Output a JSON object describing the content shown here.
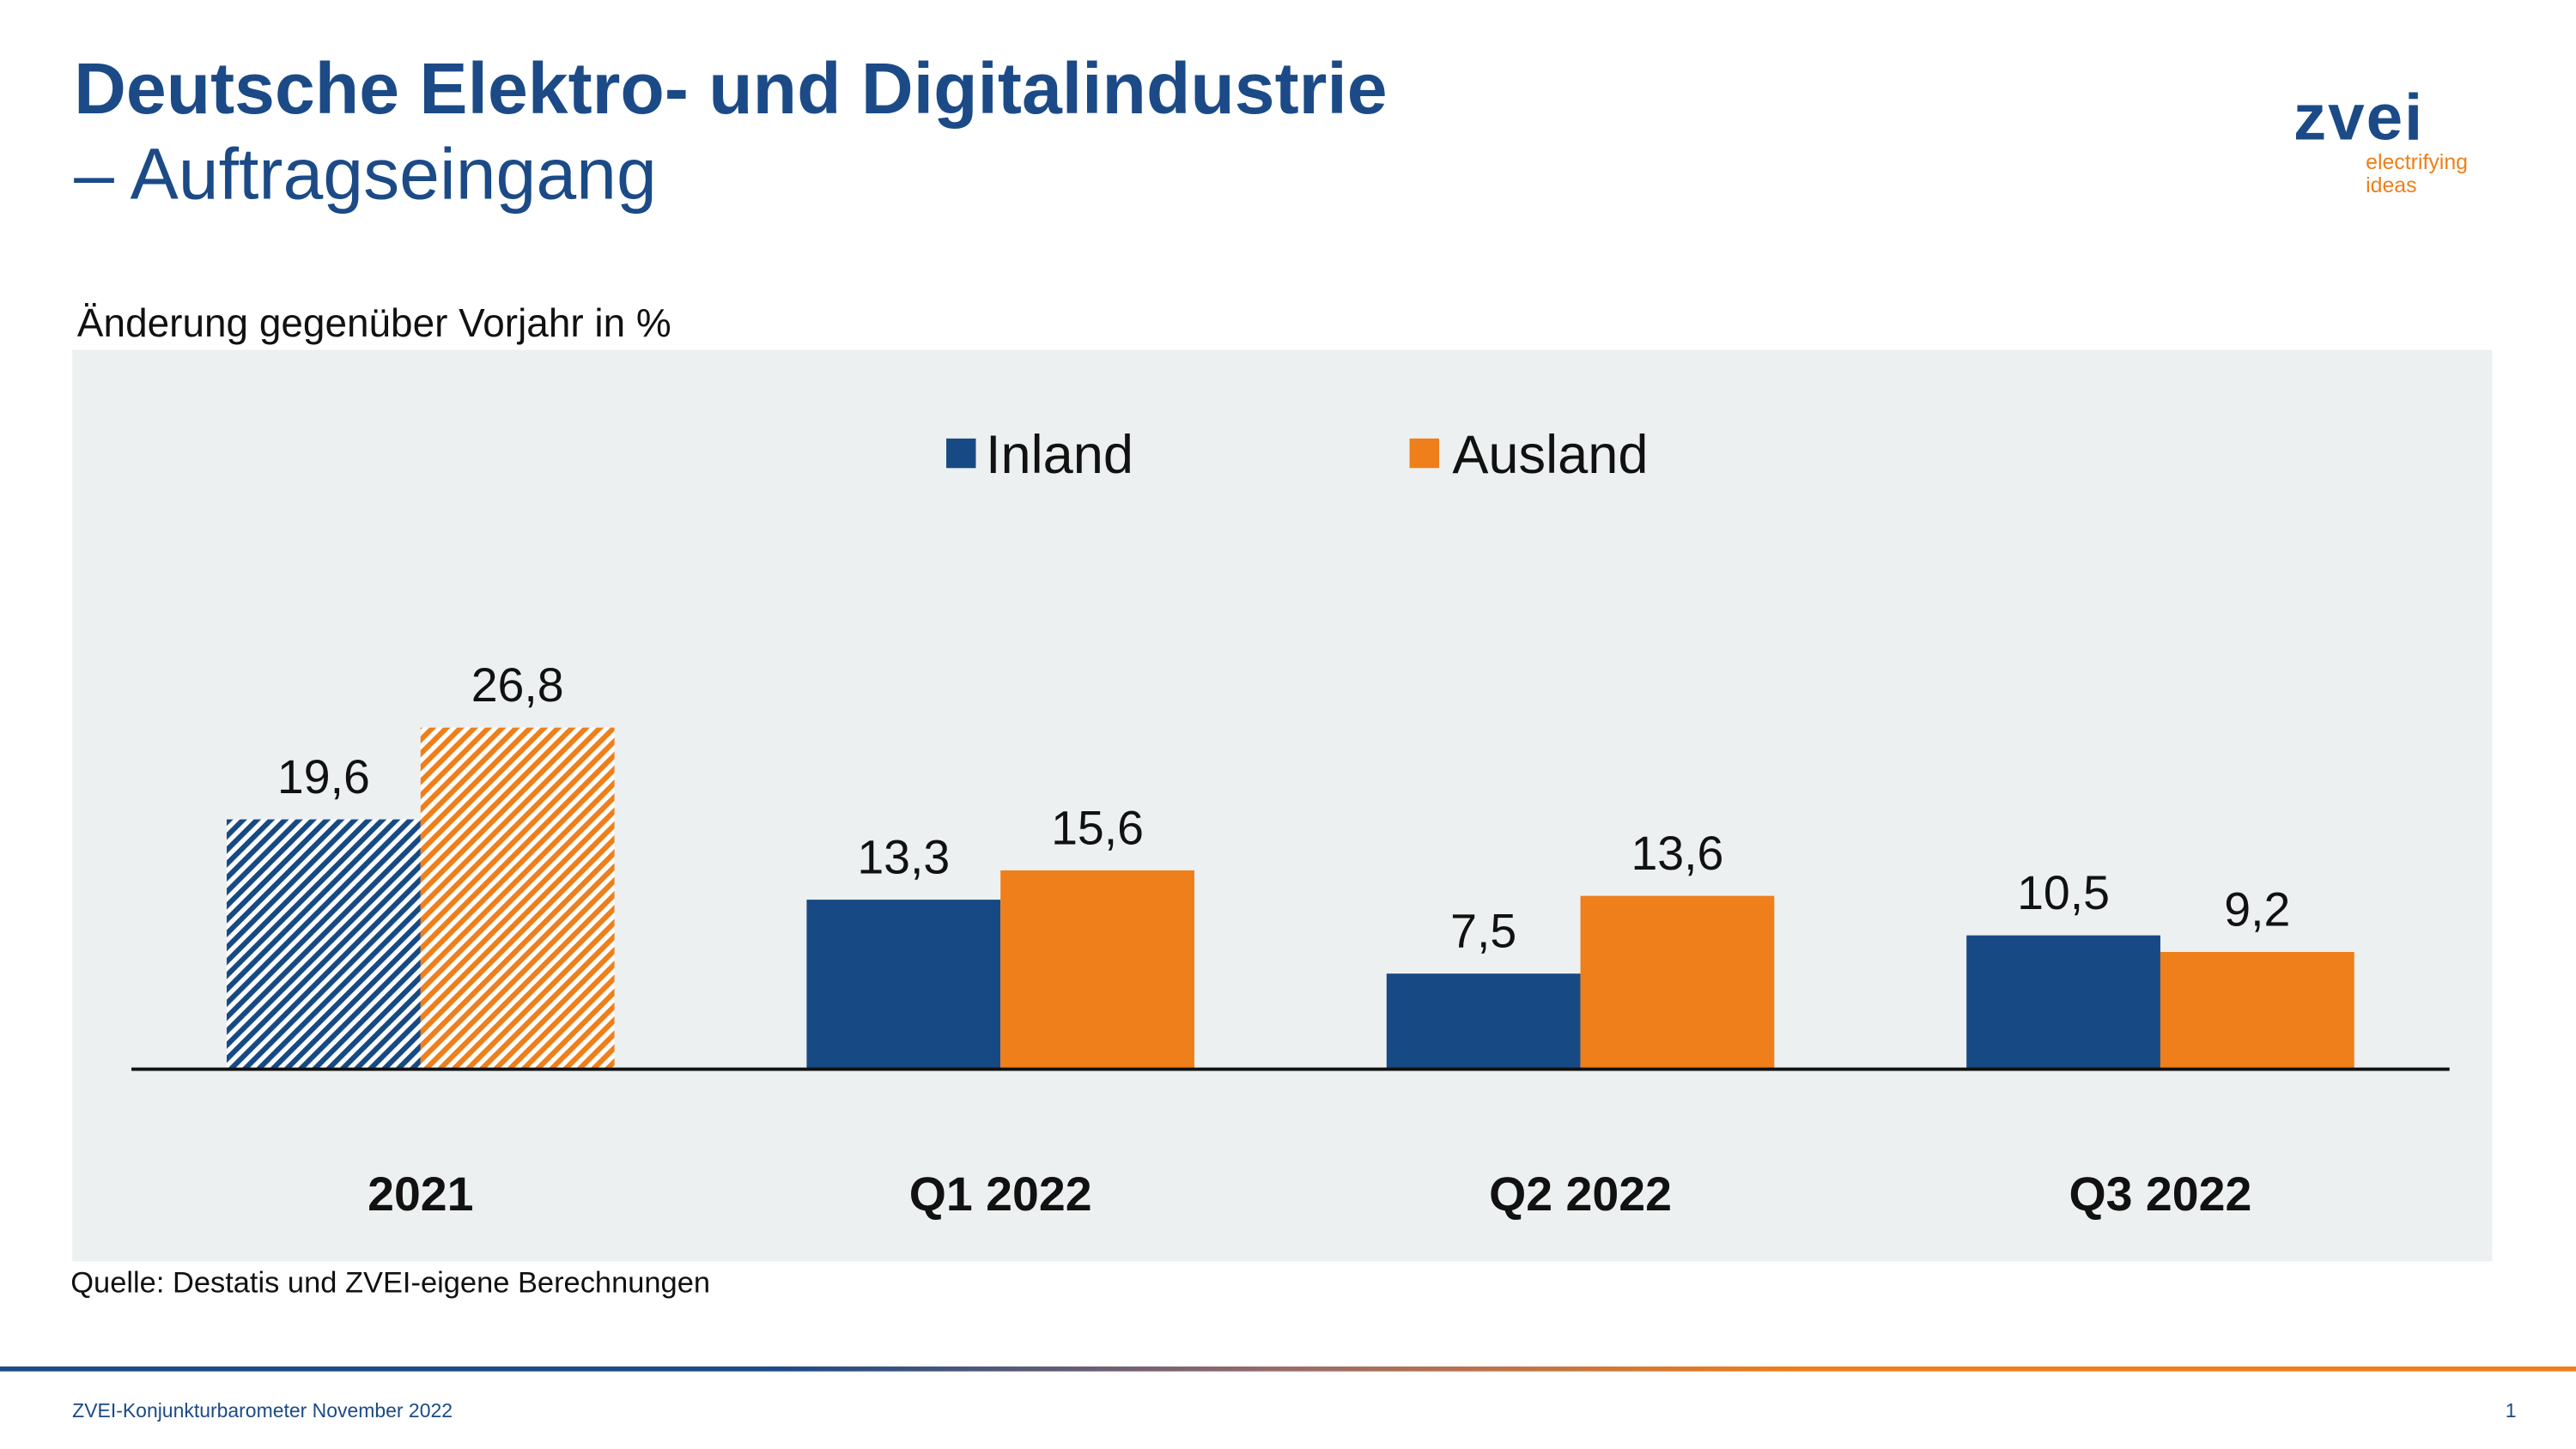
{
  "header": {
    "title": "Deutsche Elektro- und Digitalindustrie",
    "subtitle": "– Auftragseingang"
  },
  "logo": {
    "wordmark": "zvei",
    "tagline_1": "electrifying",
    "tagline_2": "ideas"
  },
  "source": "Quelle: Destatis und ZVEI-eigene Berechnungen",
  "footer": {
    "text": "ZVEI-Konjunkturbarometer November 2022",
    "page": "1"
  },
  "colors": {
    "inland": "#174a84",
    "ausland": "#ee7f1a",
    "panel": "#edf0f0"
  },
  "chart_data": {
    "type": "bar",
    "ylabel": "Änderung gegenüber Vorjahr in %",
    "categories": [
      "2021",
      "Q1 2022",
      "Q2 2022",
      "Q3 2022"
    ],
    "series": [
      {
        "name": "Inland",
        "values": [
          19.6,
          13.3,
          7.5,
          10.5
        ],
        "labels": [
          "19,6",
          "13,3",
          "7,5",
          "10,5"
        ]
      },
      {
        "name": "Ausland",
        "values": [
          26.8,
          15.6,
          13.6,
          9.2
        ],
        "labels": [
          "26,8",
          "15,6",
          "13,6",
          "9,2"
        ]
      }
    ],
    "hatched_categories": [
      "2021"
    ],
    "legend_position": "top-center",
    "grid": false
  }
}
